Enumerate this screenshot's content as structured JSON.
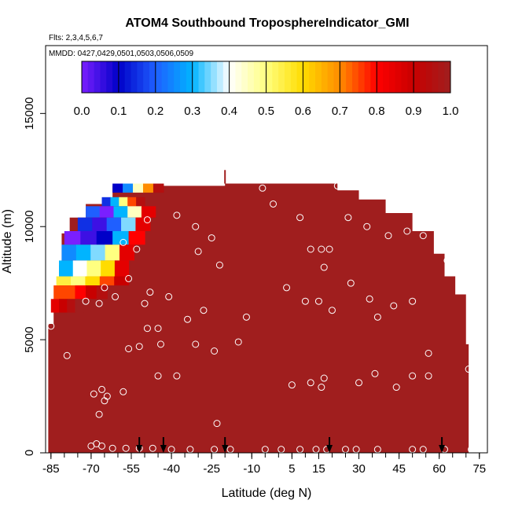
{
  "chart_data": {
    "type": "heatmap",
    "title": "ATOM4 Southbound TroposphereIndicator_GMI",
    "flights_label": "Flts: 2,3,4,5,6,7",
    "dates_label": "MMDD: 0427,0429,0501,0503,0506,0509",
    "xlabel": "Latitude (deg N)",
    "ylabel": "Altitude (m)",
    "xlim": [
      -87,
      78
    ],
    "ylim": [
      0,
      18000
    ],
    "x_ticks": [
      -85,
      -70,
      -55,
      -40,
      -25,
      -10,
      5,
      15,
      30,
      45,
      60,
      75
    ],
    "y_ticks": [
      0,
      5000,
      10000,
      15000
    ],
    "grid": false,
    "colorbar": {
      "position": "top",
      "min": 0.0,
      "max": 1.0,
      "ticks": [
        "0.0",
        "0.1",
        "0.2",
        "0.3",
        "0.4",
        "0.5",
        "0.6",
        "0.7",
        "0.8",
        "0.9",
        "1.0"
      ],
      "colors": [
        "#7a1fff",
        "#0000c8",
        "#1f5fff",
        "#00b4ff",
        "#ffffff",
        "#ffff80",
        "#ffdc00",
        "#ff8c00",
        "#ff0000",
        "#c80000",
        "#a01e1e"
      ]
    },
    "background_value": 1.0,
    "background_color": "#a01e1e",
    "curtain_tops": [
      {
        "lat": -86,
        "alt": 5700
      },
      {
        "lat": -84,
        "alt": 6800
      },
      {
        "lat": -82,
        "alt": 8300
      },
      {
        "lat": -81,
        "alt": 9700
      },
      {
        "lat": -78,
        "alt": 10400
      },
      {
        "lat": -72,
        "alt": 11000
      },
      {
        "lat": -62,
        "alt": 11800
      },
      {
        "lat": -20,
        "alt": 11900
      },
      {
        "lat": 22,
        "alt": 11600
      },
      {
        "lat": 30,
        "alt": 11200
      },
      {
        "lat": 40,
        "alt": 10600
      },
      {
        "lat": 50,
        "alt": 9800
      },
      {
        "lat": 58,
        "alt": 8800
      },
      {
        "lat": 62,
        "alt": 7800
      },
      {
        "lat": 66,
        "alt": 7000
      },
      {
        "lat": 70,
        "alt": 4800
      },
      {
        "lat": 71,
        "alt": 2000
      }
    ],
    "gradient_bands": [
      {
        "alt_bottom": 11500,
        "alt_top": 11900,
        "lat_start": -62,
        "lat_end": -43,
        "values": [
          0.1,
          0.25,
          0.45,
          0.7,
          0.95
        ]
      },
      {
        "alt_bottom": 10900,
        "alt_top": 11300,
        "lat_start": -66,
        "lat_end": -50,
        "values": [
          0.15,
          0.3,
          0.5,
          0.75,
          0.95
        ]
      },
      {
        "alt_bottom": 10400,
        "alt_top": 10900,
        "lat_start": -72,
        "lat_end": -46,
        "values": [
          0.2,
          0.0,
          0.3,
          0.45,
          0.85
        ]
      },
      {
        "alt_bottom": 9800,
        "alt_top": 10400,
        "lat_start": -75,
        "lat_end": -48,
        "values": [
          0.15,
          0.05,
          0.2,
          0.35,
          0.85
        ]
      },
      {
        "alt_bottom": 9200,
        "alt_top": 9800,
        "lat_start": -80,
        "lat_end": -50,
        "values": [
          0.0,
          0.05,
          0.1,
          0.3,
          0.8
        ]
      },
      {
        "alt_bottom": 8500,
        "alt_top": 9200,
        "lat_start": -81,
        "lat_end": -54,
        "values": [
          0.25,
          0.3,
          0.35,
          0.5,
          0.85
        ]
      },
      {
        "alt_bottom": 7800,
        "alt_top": 8500,
        "lat_start": -82,
        "lat_end": -56,
        "values": [
          0.3,
          0.4,
          0.5,
          0.6,
          0.85
        ]
      },
      {
        "alt_bottom": 7400,
        "alt_top": 7800,
        "lat_start": -83,
        "lat_end": -56,
        "values": [
          0.55,
          0.5,
          0.6,
          0.75,
          0.9
        ]
      },
      {
        "alt_bottom": 6800,
        "alt_top": 7400,
        "lat_start": -84,
        "lat_end": -64,
        "values": [
          0.75,
          0.75,
          0.8,
          0.9,
          0.95
        ]
      },
      {
        "alt_bottom": 6200,
        "alt_top": 6800,
        "lat_start": -85,
        "lat_end": -70,
        "values": [
          0.85,
          0.9,
          0.95,
          1.0,
          1.0
        ]
      }
    ],
    "flight_track_points": [
      {
        "lat": -85,
        "alt": 5600
      },
      {
        "lat": -72,
        "alt": 6700
      },
      {
        "lat": -67,
        "alt": 6600
      },
      {
        "lat": -65,
        "alt": 7300
      },
      {
        "lat": -61,
        "alt": 6900
      },
      {
        "lat": -56,
        "alt": 7700
      },
      {
        "lat": -50,
        "alt": 6600
      },
      {
        "lat": -48,
        "alt": 7100
      },
      {
        "lat": -41,
        "alt": 6900
      },
      {
        "lat": -49,
        "alt": 5500
      },
      {
        "lat": -45,
        "alt": 5500
      },
      {
        "lat": -34,
        "alt": 5900
      },
      {
        "lat": -28,
        "alt": 6300
      },
      {
        "lat": -56,
        "alt": 4600
      },
      {
        "lat": -52,
        "alt": 4700
      },
      {
        "lat": -44,
        "alt": 4800
      },
      {
        "lat": -31,
        "alt": 4800
      },
      {
        "lat": -24,
        "alt": 4500
      },
      {
        "lat": -15,
        "alt": 4900
      },
      {
        "lat": -79,
        "alt": 4300
      },
      {
        "lat": -45,
        "alt": 3400
      },
      {
        "lat": -38,
        "alt": 3400
      },
      {
        "lat": -69,
        "alt": 2600
      },
      {
        "lat": -66,
        "alt": 2800
      },
      {
        "lat": -65,
        "alt": 2300
      },
      {
        "lat": -64,
        "alt": 2500
      },
      {
        "lat": -58,
        "alt": 2700
      },
      {
        "lat": -67,
        "alt": 1700
      },
      {
        "lat": -23,
        "alt": 1300
      },
      {
        "lat": -58,
        "alt": 9300
      },
      {
        "lat": -53,
        "alt": 9000
      },
      {
        "lat": -49,
        "alt": 10300
      },
      {
        "lat": -38,
        "alt": 10500
      },
      {
        "lat": -31,
        "alt": 10000
      },
      {
        "lat": -30,
        "alt": 8900
      },
      {
        "lat": -25,
        "alt": 9500
      },
      {
        "lat": -22,
        "alt": 8300
      },
      {
        "lat": -6,
        "alt": 11700
      },
      {
        "lat": -2,
        "alt": 11000
      },
      {
        "lat": 8,
        "alt": 10400
      },
      {
        "lat": 12,
        "alt": 9000
      },
      {
        "lat": 16,
        "alt": 9000
      },
      {
        "lat": 17,
        "alt": 8200
      },
      {
        "lat": 19,
        "alt": 9000
      },
      {
        "lat": 22,
        "alt": 11800
      },
      {
        "lat": 26,
        "alt": 10400
      },
      {
        "lat": 33,
        "alt": 10000
      },
      {
        "lat": 41,
        "alt": 9600
      },
      {
        "lat": 48,
        "alt": 9800
      },
      {
        "lat": 54,
        "alt": 9600
      },
      {
        "lat": 63,
        "alt": 8500
      },
      {
        "lat": 27,
        "alt": 7500
      },
      {
        "lat": 3,
        "alt": 7300
      },
      {
        "lat": 10,
        "alt": 6700
      },
      {
        "lat": 15,
        "alt": 6700
      },
      {
        "lat": 20,
        "alt": 6300
      },
      {
        "lat": -12,
        "alt": 6000
      },
      {
        "lat": 34,
        "alt": 6800
      },
      {
        "lat": 37,
        "alt": 6000
      },
      {
        "lat": 43,
        "alt": 6500
      },
      {
        "lat": 50,
        "alt": 6700
      },
      {
        "lat": 70,
        "alt": 7300
      },
      {
        "lat": 5,
        "alt": 3000
      },
      {
        "lat": 12,
        "alt": 3100
      },
      {
        "lat": 16,
        "alt": 2900
      },
      {
        "lat": 17,
        "alt": 3300
      },
      {
        "lat": 30,
        "alt": 3100
      },
      {
        "lat": 36,
        "alt": 3500
      },
      {
        "lat": 44,
        "alt": 2900
      },
      {
        "lat": 50,
        "alt": 3400
      },
      {
        "lat": 56,
        "alt": 3400
      },
      {
        "lat": 56,
        "alt": 4400
      },
      {
        "lat": 71,
        "alt": 3700
      },
      {
        "lat": -70,
        "alt": 300
      },
      {
        "lat": -68,
        "alt": 400
      },
      {
        "lat": -66,
        "alt": 300
      },
      {
        "lat": -62,
        "alt": 200
      },
      {
        "lat": -57,
        "alt": 200
      },
      {
        "lat": -52,
        "alt": 200
      },
      {
        "lat": -47,
        "alt": 200
      },
      {
        "lat": -40,
        "alt": 150
      },
      {
        "lat": -33,
        "alt": 150
      },
      {
        "lat": -24,
        "alt": 150
      },
      {
        "lat": -18,
        "alt": 150
      },
      {
        "lat": -5,
        "alt": 150
      },
      {
        "lat": 1,
        "alt": 150
      },
      {
        "lat": 8,
        "alt": 150
      },
      {
        "lat": 14,
        "alt": 150
      },
      {
        "lat": 18,
        "alt": 150
      },
      {
        "lat": 25,
        "alt": 150
      },
      {
        "lat": 29,
        "alt": 150
      },
      {
        "lat": 37,
        "alt": 150
      },
      {
        "lat": 50,
        "alt": 150
      },
      {
        "lat": 54,
        "alt": 150
      },
      {
        "lat": 62,
        "alt": 150
      },
      {
        "lat": 72,
        "alt": 150
      }
    ],
    "flight_markers_lat": [
      -52,
      -43,
      -20,
      19,
      61
    ]
  }
}
